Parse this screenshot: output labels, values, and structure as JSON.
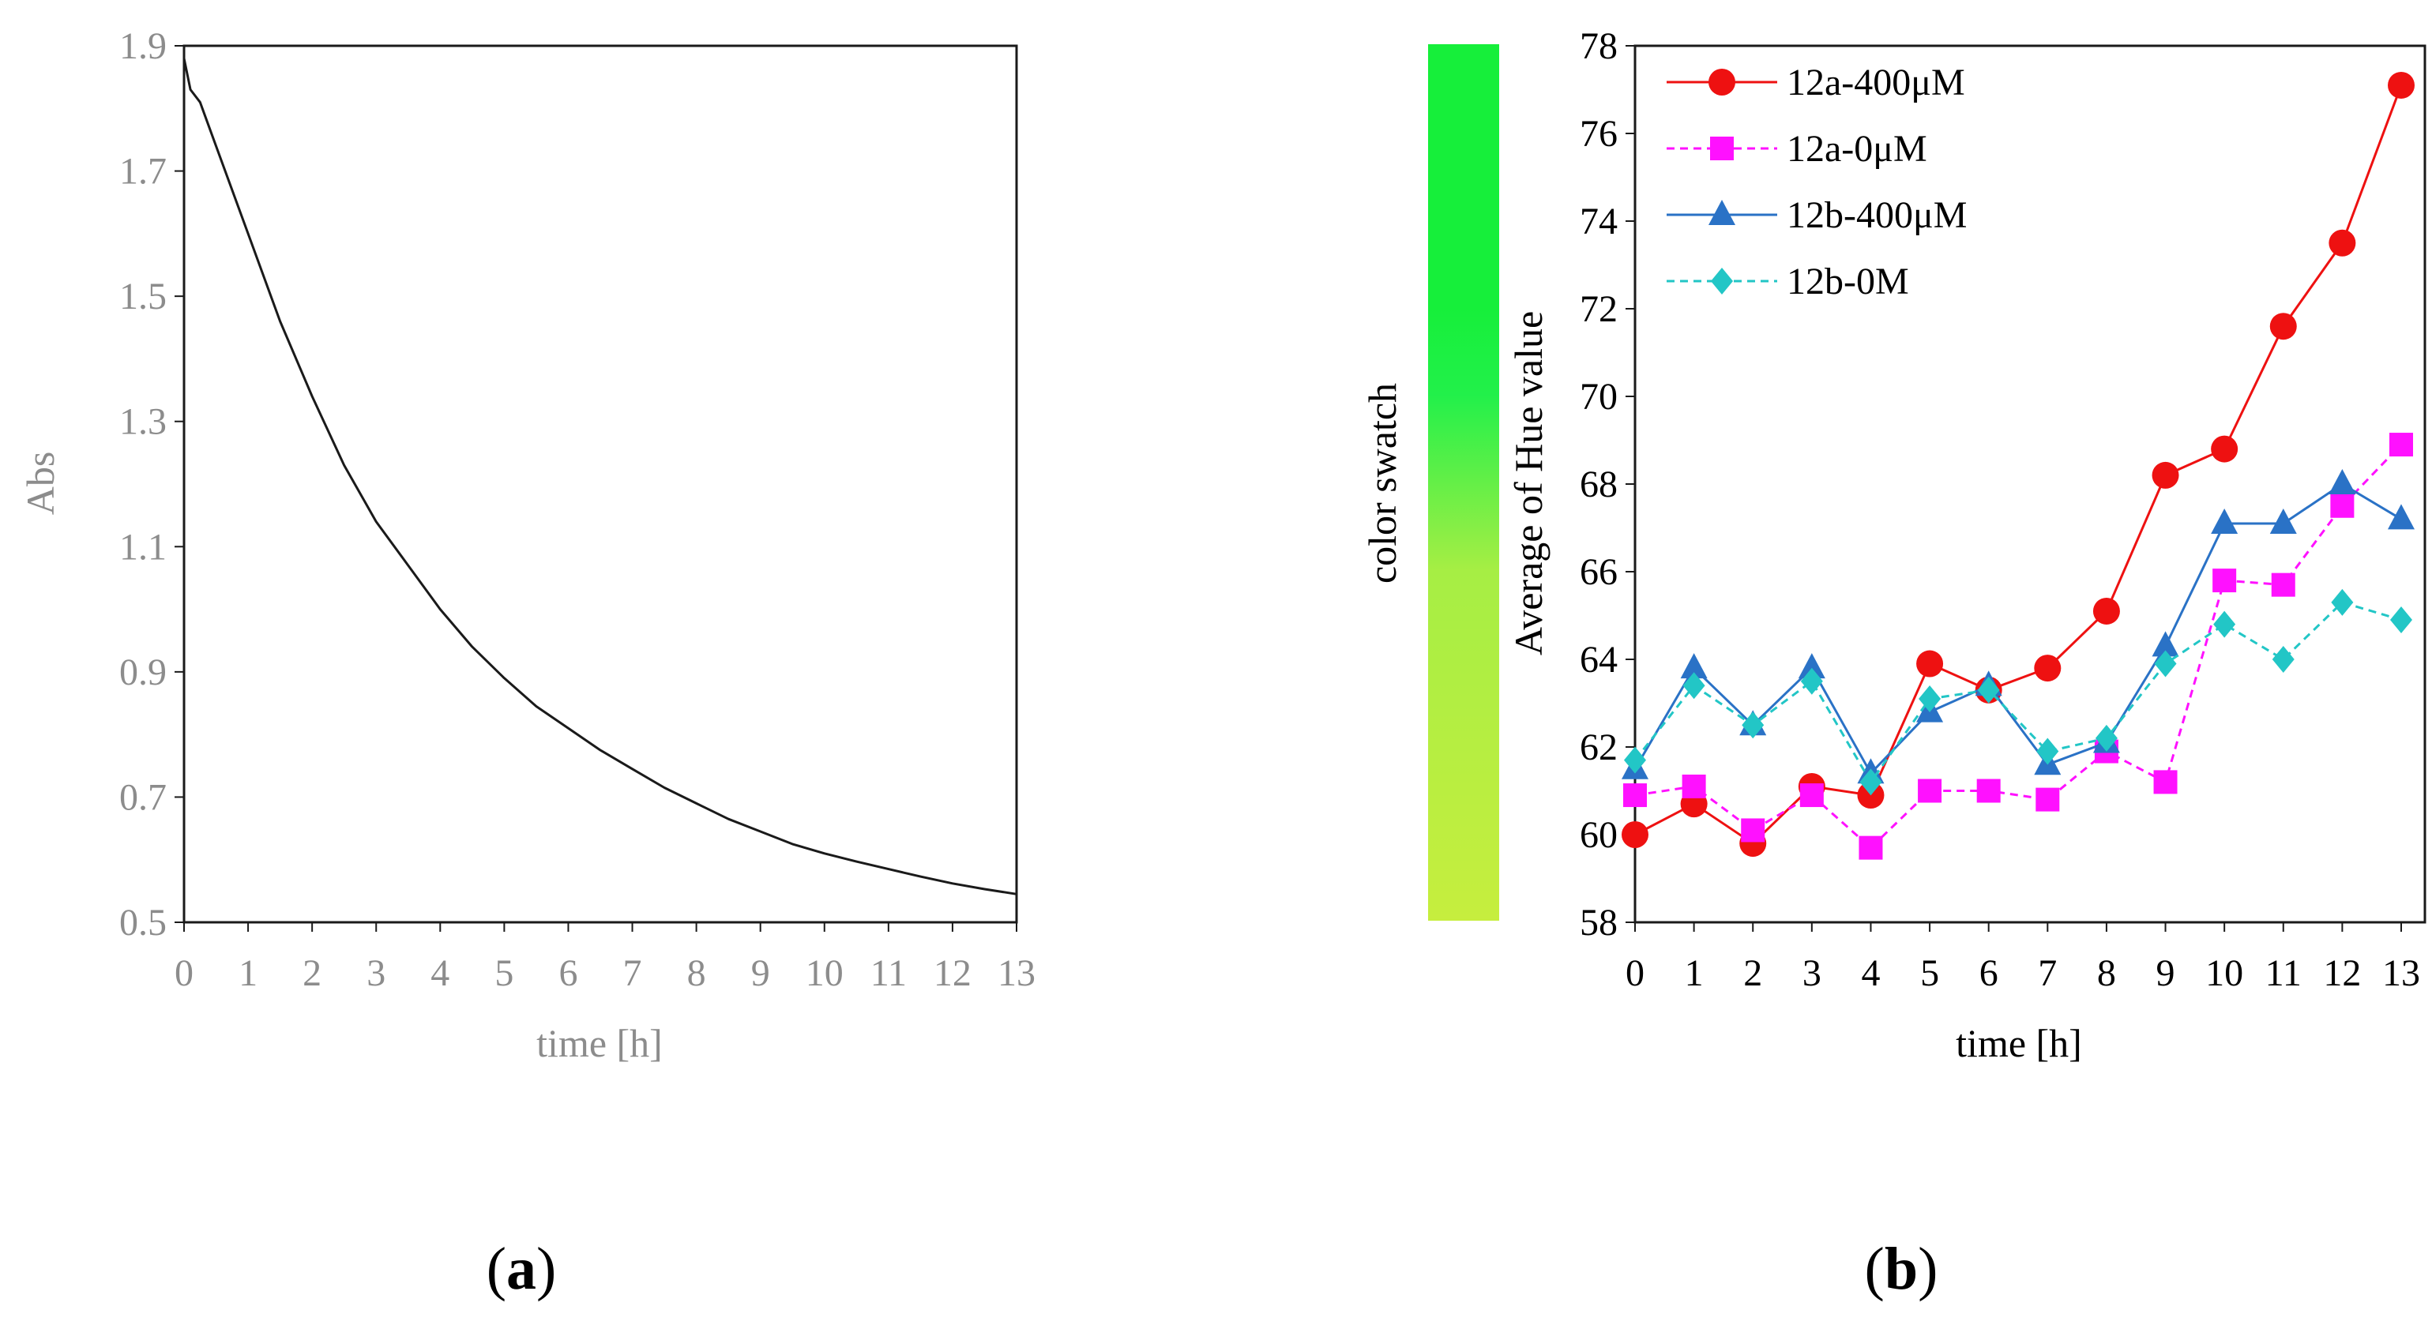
{
  "chart_data": [
    {
      "type": "line",
      "panel_label_open": "(",
      "panel_label_letter": "a",
      "panel_label_close": ")",
      "xlabel": "time [h]",
      "ylabel": "Abs",
      "xlim": [
        0,
        13
      ],
      "ylim": [
        0.5,
        1.9
      ],
      "x_ticks": [
        0,
        1,
        2,
        3,
        4,
        5,
        6,
        7,
        8,
        9,
        10,
        11,
        12,
        13
      ],
      "x_tick_labels": [
        "0",
        "1",
        "2",
        "3",
        "4",
        "5",
        "6",
        "7",
        "8",
        "9",
        "10",
        "11",
        "12",
        "13"
      ],
      "y_ticks": [
        0.5,
        0.7,
        0.9,
        1.1,
        1.3,
        1.5,
        1.7,
        1.9
      ],
      "y_tick_labels": [
        "0.5",
        "0.7",
        "0.9",
        "1.1",
        "1.3",
        "1.5",
        "1.7",
        "1.9"
      ],
      "grid": false,
      "series": [
        {
          "name": "Abs",
          "color": "#1a1a1a",
          "x": [
            0,
            0.1,
            0.25,
            0.5,
            1,
            1.5,
            2,
            2.5,
            3,
            3.5,
            4,
            4.5,
            5,
            5.5,
            6,
            6.5,
            7,
            7.5,
            8,
            8.5,
            9,
            9.5,
            10,
            10.5,
            11,
            11.5,
            12,
            12.5,
            13
          ],
          "y": [
            1.88,
            1.83,
            1.81,
            1.74,
            1.6,
            1.46,
            1.34,
            1.23,
            1.14,
            1.07,
            1.0,
            0.94,
            0.89,
            0.845,
            0.81,
            0.775,
            0.745,
            0.715,
            0.69,
            0.665,
            0.645,
            0.625,
            0.61,
            0.597,
            0.585,
            0.573,
            0.562,
            0.553,
            0.545
          ]
        }
      ]
    },
    {
      "type": "line",
      "panel_label_open": "(",
      "panel_label_letter": "b",
      "panel_label_close": ")",
      "xlabel": "time [h]",
      "ylabel": "Average of Hue value",
      "swatch_label": "color  swatch",
      "swatch_colors": [
        "#16ef3a",
        "#16ef3a",
        "#22f04a",
        "#a6ee44",
        "#c6ee3e"
      ],
      "xlim": [
        0,
        13
      ],
      "ylim": [
        58,
        78
      ],
      "x_ticks": [
        0,
        1,
        2,
        3,
        4,
        5,
        6,
        7,
        8,
        9,
        10,
        11,
        12,
        13
      ],
      "x_tick_labels": [
        "0",
        "1",
        "2",
        "3",
        "4",
        "5",
        "6",
        "7",
        "8",
        "9",
        "10",
        "11",
        "12",
        "13"
      ],
      "y_ticks": [
        58,
        60,
        62,
        64,
        66,
        68,
        70,
        72,
        74,
        76,
        78
      ],
      "y_tick_labels": [
        "58",
        "60",
        "62",
        "64",
        "66",
        "68",
        "70",
        "72",
        "74",
        "76",
        "78"
      ],
      "grid": false,
      "legend_position": "top-left",
      "x": [
        0,
        1,
        2,
        3,
        4,
        5,
        6,
        7,
        8,
        9,
        10,
        11,
        12,
        13
      ],
      "series": [
        {
          "name": "12a-400μM",
          "color": "#ee1111",
          "marker": "circle",
          "dash": false,
          "values": [
            60.0,
            60.7,
            59.8,
            61.1,
            60.9,
            63.9,
            63.3,
            63.8,
            65.1,
            68.2,
            68.8,
            71.6,
            73.5,
            77.1
          ]
        },
        {
          "name": "12a-0μM",
          "color": "#ff11ff",
          "marker": "square",
          "dash": true,
          "values": [
            60.9,
            61.1,
            60.1,
            60.9,
            59.7,
            61.0,
            61.0,
            60.8,
            61.9,
            61.2,
            65.8,
            65.7,
            67.5,
            68.9
          ]
        },
        {
          "name": "12b-400μM",
          "color": "#2a72c6",
          "marker": "triangle",
          "dash": false,
          "values": [
            61.5,
            63.8,
            62.5,
            63.8,
            61.4,
            62.8,
            63.4,
            61.6,
            62.1,
            64.3,
            67.1,
            67.1,
            68.0,
            67.2
          ]
        },
        {
          "name": "12b-0M",
          "color": "#22c6c6",
          "marker": "diamond",
          "dash": true,
          "values": [
            61.7,
            63.4,
            62.5,
            63.5,
            61.2,
            63.1,
            63.3,
            61.9,
            62.2,
            63.9,
            64.8,
            64.0,
            65.3,
            64.9
          ]
        }
      ]
    }
  ]
}
